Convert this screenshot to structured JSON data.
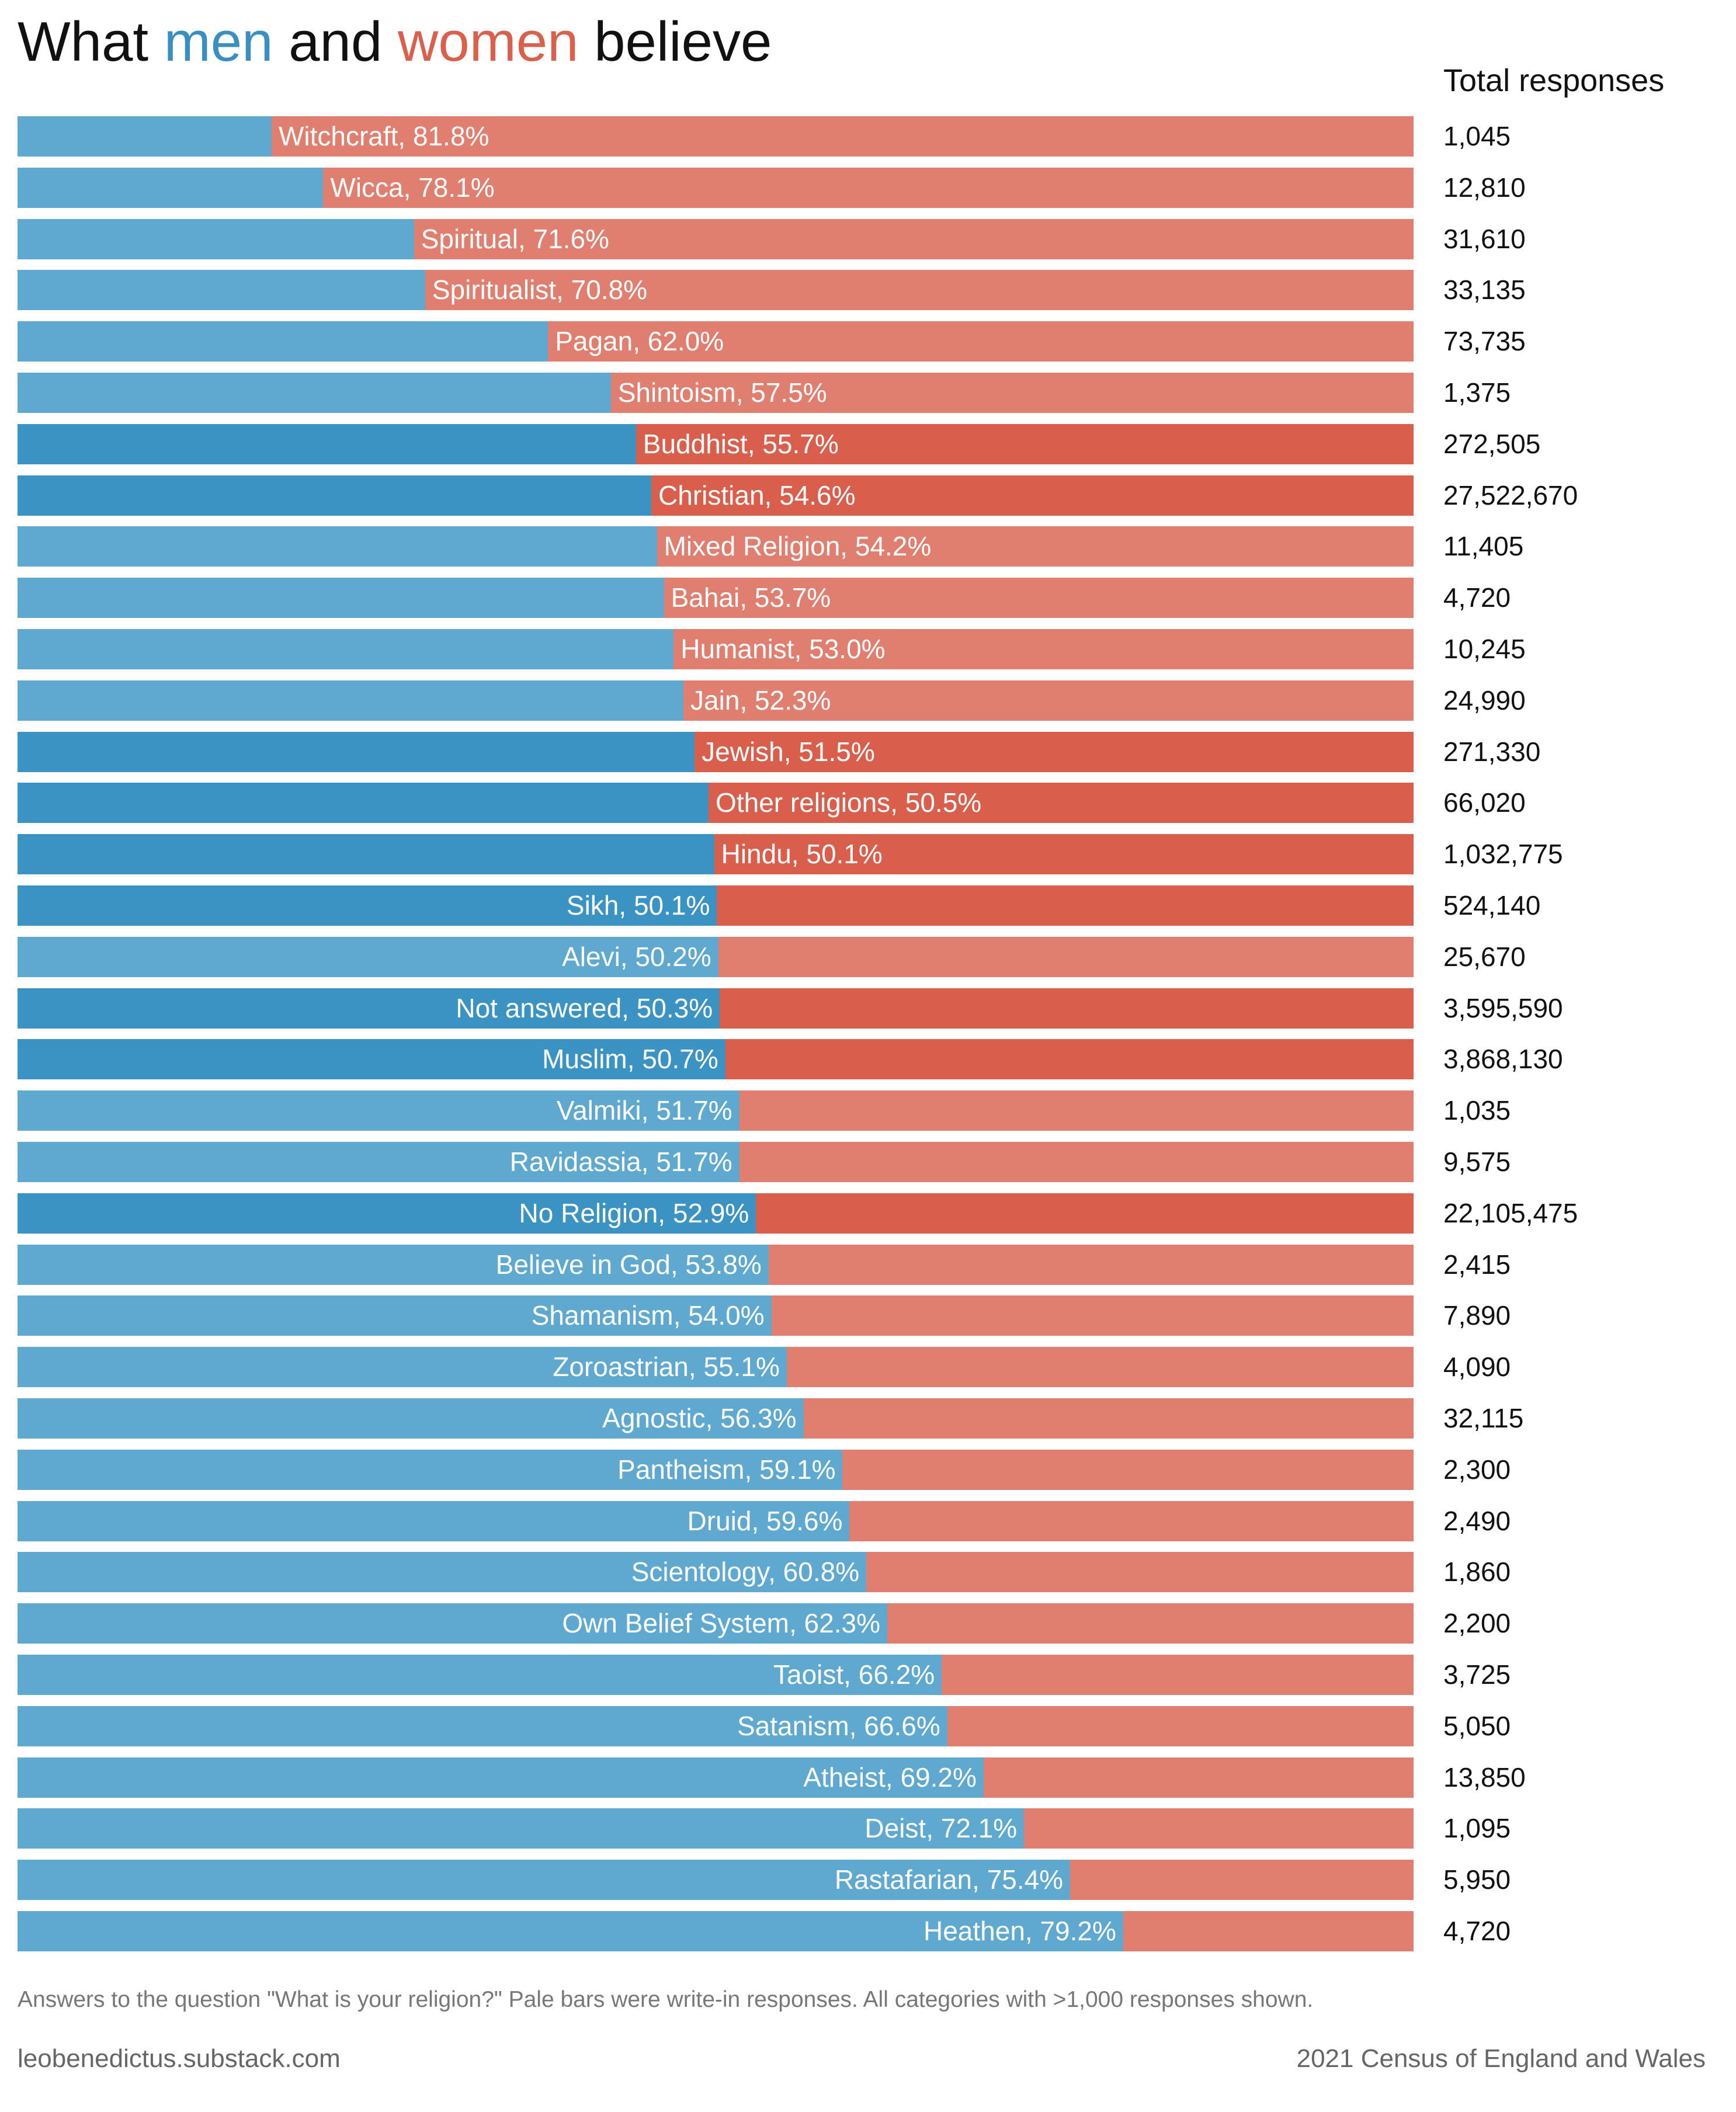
{
  "title": {
    "part1": "What ",
    "men": "men",
    "part2": " and ",
    "women": "women",
    "part3": " believe"
  },
  "colors": {
    "men_pale": "#5fa8d0",
    "men_dark": "#3a93c3",
    "women_pale": "#e07f70",
    "women_dark": "#d95f4c",
    "title_men": "#3a8fc0",
    "title_women": "#d9604c"
  },
  "chart_data": {
    "type": "bar",
    "orientation": "horizontal-stacked-100",
    "total_header": "Total responses",
    "note": "Answers to the question \"What is your religion?\" Pale bars were write-in responses. All categories with >1,000 responses shown.",
    "rows": [
      {
        "category": "Witchcraft",
        "majority": "women",
        "percent": 81.8,
        "total": "1,045",
        "write_in": true
      },
      {
        "category": "Wicca",
        "majority": "women",
        "percent": 78.1,
        "total": "12,810",
        "write_in": true
      },
      {
        "category": "Spiritual",
        "majority": "women",
        "percent": 71.6,
        "total": "31,610",
        "write_in": true
      },
      {
        "category": "Spiritualist",
        "majority": "women",
        "percent": 70.8,
        "total": "33,135",
        "write_in": true
      },
      {
        "category": "Pagan",
        "majority": "women",
        "percent": 62.0,
        "total": "73,735",
        "write_in": true
      },
      {
        "category": "Shintoism",
        "majority": "women",
        "percent": 57.5,
        "total": "1,375",
        "write_in": true
      },
      {
        "category": "Buddhist",
        "majority": "women",
        "percent": 55.7,
        "total": "272,505",
        "write_in": false
      },
      {
        "category": "Christian",
        "majority": "women",
        "percent": 54.6,
        "total": "27,522,670",
        "write_in": false
      },
      {
        "category": "Mixed Religion",
        "majority": "women",
        "percent": 54.2,
        "total": "11,405",
        "write_in": true
      },
      {
        "category": "Bahai",
        "majority": "women",
        "percent": 53.7,
        "total": "4,720",
        "write_in": true
      },
      {
        "category": "Humanist",
        "majority": "women",
        "percent": 53.0,
        "total": "10,245",
        "write_in": true
      },
      {
        "category": "Jain",
        "majority": "women",
        "percent": 52.3,
        "total": "24,990",
        "write_in": true
      },
      {
        "category": "Jewish",
        "majority": "women",
        "percent": 51.5,
        "total": "271,330",
        "write_in": false
      },
      {
        "category": "Other religions",
        "majority": "women",
        "percent": 50.5,
        "total": "66,020",
        "write_in": false
      },
      {
        "category": "Hindu",
        "majority": "women",
        "percent": 50.1,
        "total": "1,032,775",
        "write_in": false
      },
      {
        "category": "Sikh",
        "majority": "men",
        "percent": 50.1,
        "total": "524,140",
        "write_in": false
      },
      {
        "category": "Alevi",
        "majority": "men",
        "percent": 50.2,
        "total": "25,670",
        "write_in": true
      },
      {
        "category": "Not answered",
        "majority": "men",
        "percent": 50.3,
        "total": "3,595,590",
        "write_in": false
      },
      {
        "category": "Muslim",
        "majority": "men",
        "percent": 50.7,
        "total": "3,868,130",
        "write_in": false
      },
      {
        "category": "Valmiki",
        "majority": "men",
        "percent": 51.7,
        "total": "1,035",
        "write_in": true
      },
      {
        "category": "Ravidassia",
        "majority": "men",
        "percent": 51.7,
        "total": "9,575",
        "write_in": true
      },
      {
        "category": "No Religion",
        "majority": "men",
        "percent": 52.9,
        "total": "22,105,475",
        "write_in": false
      },
      {
        "category": "Believe in God",
        "majority": "men",
        "percent": 53.8,
        "total": "2,415",
        "write_in": true
      },
      {
        "category": "Shamanism",
        "majority": "men",
        "percent": 54.0,
        "total": "7,890",
        "write_in": true
      },
      {
        "category": "Zoroastrian",
        "majority": "men",
        "percent": 55.1,
        "total": "4,090",
        "write_in": true
      },
      {
        "category": "Agnostic",
        "majority": "men",
        "percent": 56.3,
        "total": "32,115",
        "write_in": true
      },
      {
        "category": "Pantheism",
        "majority": "men",
        "percent": 59.1,
        "total": "2,300",
        "write_in": true
      },
      {
        "category": "Druid",
        "majority": "men",
        "percent": 59.6,
        "total": "2,490",
        "write_in": true
      },
      {
        "category": "Scientology",
        "majority": "men",
        "percent": 60.8,
        "total": "1,860",
        "write_in": true
      },
      {
        "category": "Own Belief System",
        "majority": "men",
        "percent": 62.3,
        "total": "2,200",
        "write_in": true
      },
      {
        "category": "Taoist",
        "majority": "men",
        "percent": 66.2,
        "total": "3,725",
        "write_in": true
      },
      {
        "category": "Satanism",
        "majority": "men",
        "percent": 66.6,
        "total": "5,050",
        "write_in": true
      },
      {
        "category": "Atheist",
        "majority": "men",
        "percent": 69.2,
        "total": "13,850",
        "write_in": true
      },
      {
        "category": "Deist",
        "majority": "men",
        "percent": 72.1,
        "total": "1,095",
        "write_in": true
      },
      {
        "category": "Rastafarian",
        "majority": "men",
        "percent": 75.4,
        "total": "5,950",
        "write_in": true
      },
      {
        "category": "Heathen",
        "majority": "men",
        "percent": 79.2,
        "total": "4,720",
        "write_in": true
      }
    ]
  },
  "footer": {
    "site": "leobenedictus.substack.com",
    "source": "2021 Census of England and Wales"
  }
}
